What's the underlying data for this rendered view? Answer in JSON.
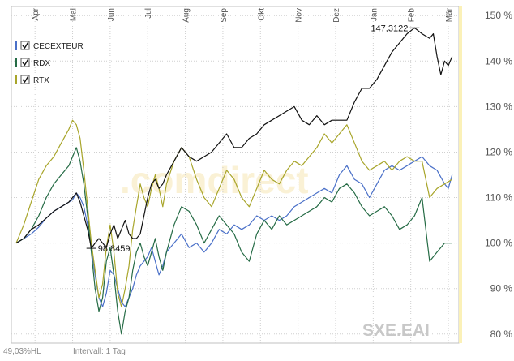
{
  "chart_data": {
    "type": "line",
    "x_labels": [
      "Apr",
      "Mai",
      "Jun",
      "Jul",
      "Aug",
      "Sep",
      "Okt",
      "Nov",
      "Dez",
      "Jan",
      "Feb",
      "Mär"
    ],
    "y_tick_labels": [
      "150 %",
      "140 %",
      "130 %",
      "120 %",
      "110 %",
      "100 %",
      "90 %",
      "80 %"
    ],
    "y_ticks": [
      150,
      140,
      130,
      120,
      110,
      100,
      90,
      80
    ],
    "ylim": [
      78,
      152
    ],
    "x_range": [
      0,
      11.65
    ],
    "grid": true,
    "legend": {
      "placement": "top-left"
    },
    "series": [
      {
        "name": "CECEXTEUR",
        "color": "#4a70c8",
        "values": [
          [
            0,
            100
          ],
          [
            0.2,
            101
          ],
          [
            0.4,
            102
          ],
          [
            0.6,
            103.5
          ],
          [
            0.8,
            105.5
          ],
          [
            1.0,
            107
          ],
          [
            1.2,
            108
          ],
          [
            1.4,
            109
          ],
          [
            1.5,
            109.5
          ],
          [
            1.6,
            111
          ],
          [
            1.7,
            110
          ],
          [
            1.8,
            108
          ],
          [
            1.9,
            104
          ],
          [
            2.0,
            99
          ],
          [
            2.1,
            93
          ],
          [
            2.2,
            88
          ],
          [
            2.3,
            86
          ],
          [
            2.4,
            89
          ],
          [
            2.5,
            94
          ],
          [
            2.6,
            93
          ],
          [
            2.7,
            90
          ],
          [
            2.8,
            87
          ],
          [
            2.9,
            86
          ],
          [
            3.0,
            88
          ],
          [
            3.1,
            90
          ],
          [
            3.2,
            93
          ],
          [
            3.3,
            95
          ],
          [
            3.4,
            96
          ],
          [
            3.5,
            97
          ],
          [
            3.6,
            99
          ],
          [
            3.7,
            96
          ],
          [
            3.8,
            93
          ],
          [
            3.9,
            95
          ],
          [
            4.0,
            98
          ],
          [
            4.2,
            100
          ],
          [
            4.4,
            102
          ],
          [
            4.6,
            99
          ],
          [
            4.8,
            100
          ],
          [
            5.0,
            98
          ],
          [
            5.2,
            100
          ],
          [
            5.4,
            103
          ],
          [
            5.6,
            102
          ],
          [
            5.8,
            104
          ],
          [
            6.0,
            103
          ],
          [
            6.2,
            104
          ],
          [
            6.4,
            106
          ],
          [
            6.6,
            105
          ],
          [
            6.8,
            106
          ],
          [
            7.0,
            105
          ],
          [
            7.2,
            106
          ],
          [
            7.4,
            108
          ],
          [
            7.6,
            109
          ],
          [
            7.8,
            110
          ],
          [
            8.0,
            111
          ],
          [
            8.2,
            112
          ],
          [
            8.4,
            111
          ],
          [
            8.6,
            115
          ],
          [
            8.8,
            117
          ],
          [
            9.0,
            114
          ],
          [
            9.2,
            113
          ],
          [
            9.4,
            110
          ],
          [
            9.6,
            113
          ],
          [
            9.8,
            116
          ],
          [
            10.0,
            117
          ],
          [
            10.2,
            116
          ],
          [
            10.4,
            117
          ],
          [
            10.6,
            118
          ],
          [
            10.8,
            119
          ],
          [
            11.0,
            117
          ],
          [
            11.2,
            116
          ],
          [
            11.4,
            113
          ],
          [
            11.5,
            112
          ],
          [
            11.6,
            115
          ]
        ]
      },
      {
        "name": "RDX",
        "color": "#256b45",
        "values": [
          [
            0,
            100
          ],
          [
            0.2,
            101
          ],
          [
            0.4,
            103
          ],
          [
            0.6,
            106
          ],
          [
            0.8,
            110
          ],
          [
            1.0,
            113
          ],
          [
            1.2,
            115
          ],
          [
            1.4,
            117
          ],
          [
            1.5,
            119
          ],
          [
            1.6,
            121
          ],
          [
            1.7,
            118
          ],
          [
            1.8,
            113
          ],
          [
            1.9,
            106
          ],
          [
            2.0,
            98
          ],
          [
            2.1,
            90
          ],
          [
            2.2,
            85
          ],
          [
            2.3,
            88
          ],
          [
            2.4,
            96
          ],
          [
            2.5,
            99
          ],
          [
            2.6,
            93
          ],
          [
            2.7,
            85
          ],
          [
            2.8,
            80
          ],
          [
            2.9,
            85
          ],
          [
            3.0,
            88
          ],
          [
            3.1,
            94
          ],
          [
            3.2,
            98
          ],
          [
            3.3,
            100
          ],
          [
            3.4,
            97
          ],
          [
            3.5,
            95
          ],
          [
            3.6,
            98
          ],
          [
            3.7,
            101
          ],
          [
            3.8,
            97
          ],
          [
            3.9,
            94
          ],
          [
            4.0,
            98
          ],
          [
            4.2,
            104
          ],
          [
            4.4,
            108
          ],
          [
            4.6,
            107
          ],
          [
            4.8,
            104
          ],
          [
            5.0,
            100
          ],
          [
            5.2,
            103
          ],
          [
            5.4,
            106
          ],
          [
            5.6,
            104
          ],
          [
            5.8,
            102
          ],
          [
            6.0,
            98
          ],
          [
            6.2,
            96
          ],
          [
            6.4,
            102
          ],
          [
            6.6,
            105
          ],
          [
            6.8,
            103
          ],
          [
            7.0,
            106
          ],
          [
            7.2,
            104
          ],
          [
            7.4,
            105
          ],
          [
            7.6,
            106
          ],
          [
            7.8,
            107
          ],
          [
            8.0,
            108
          ],
          [
            8.2,
            110
          ],
          [
            8.4,
            109
          ],
          [
            8.6,
            112
          ],
          [
            8.8,
            113
          ],
          [
            9.0,
            111
          ],
          [
            9.2,
            108
          ],
          [
            9.4,
            106
          ],
          [
            9.6,
            107
          ],
          [
            9.8,
            108
          ],
          [
            10.0,
            106
          ],
          [
            10.2,
            103
          ],
          [
            10.4,
            104
          ],
          [
            10.6,
            106
          ],
          [
            10.8,
            110
          ],
          [
            11.0,
            96
          ],
          [
            11.2,
            98
          ],
          [
            11.4,
            100
          ],
          [
            11.6,
            100
          ]
        ]
      },
      {
        "name": "RTX",
        "color": "#a8a52a",
        "values": [
          [
            0,
            100
          ],
          [
            0.2,
            104
          ],
          [
            0.4,
            109
          ],
          [
            0.6,
            114
          ],
          [
            0.8,
            117
          ],
          [
            1.0,
            119
          ],
          [
            1.2,
            122
          ],
          [
            1.4,
            125
          ],
          [
            1.5,
            127
          ],
          [
            1.6,
            126
          ],
          [
            1.7,
            123
          ],
          [
            1.8,
            116
          ],
          [
            1.9,
            108
          ],
          [
            2.0,
            100
          ],
          [
            2.1,
            94
          ],
          [
            2.2,
            88
          ],
          [
            2.3,
            91
          ],
          [
            2.4,
            99
          ],
          [
            2.5,
            104
          ],
          [
            2.6,
            98
          ],
          [
            2.7,
            89
          ],
          [
            2.8,
            86
          ],
          [
            2.9,
            90
          ],
          [
            3.0,
            95
          ],
          [
            3.1,
            103
          ],
          [
            3.2,
            108
          ],
          [
            3.3,
            113
          ],
          [
            3.4,
            110
          ],
          [
            3.5,
            108
          ],
          [
            3.6,
            112
          ],
          [
            3.7,
            115
          ],
          [
            3.8,
            112
          ],
          [
            3.9,
            108
          ],
          [
            4.0,
            113
          ],
          [
            4.2,
            118
          ],
          [
            4.4,
            121
          ],
          [
            4.6,
            119
          ],
          [
            4.8,
            114
          ],
          [
            5.0,
            110
          ],
          [
            5.2,
            108
          ],
          [
            5.4,
            112
          ],
          [
            5.6,
            116
          ],
          [
            5.8,
            114
          ],
          [
            6.0,
            110
          ],
          [
            6.2,
            108
          ],
          [
            6.4,
            112
          ],
          [
            6.6,
            116
          ],
          [
            6.8,
            114
          ],
          [
            7.0,
            113
          ],
          [
            7.2,
            116
          ],
          [
            7.4,
            118
          ],
          [
            7.6,
            117
          ],
          [
            7.8,
            119
          ],
          [
            8.0,
            121
          ],
          [
            8.2,
            124
          ],
          [
            8.4,
            122
          ],
          [
            8.6,
            124
          ],
          [
            8.8,
            126
          ],
          [
            9.0,
            122
          ],
          [
            9.2,
            118
          ],
          [
            9.4,
            116
          ],
          [
            9.6,
            117
          ],
          [
            9.8,
            118
          ],
          [
            10.0,
            116
          ],
          [
            10.2,
            118
          ],
          [
            10.4,
            119
          ],
          [
            10.6,
            118
          ],
          [
            10.8,
            118
          ],
          [
            11.0,
            110
          ],
          [
            11.2,
            112
          ],
          [
            11.4,
            113
          ],
          [
            11.6,
            114
          ]
        ]
      },
      {
        "name": "",
        "color": "#111111",
        "values": [
          [
            0,
            100
          ],
          [
            0.2,
            101
          ],
          [
            0.4,
            103
          ],
          [
            0.6,
            104
          ],
          [
            0.8,
            105.5
          ],
          [
            1.0,
            107
          ],
          [
            1.2,
            108
          ],
          [
            1.4,
            109
          ],
          [
            1.5,
            110
          ],
          [
            1.6,
            111
          ],
          [
            1.7,
            109
          ],
          [
            1.8,
            106
          ],
          [
            1.9,
            103
          ],
          [
            2.0,
            98.85
          ],
          [
            2.1,
            100
          ],
          [
            2.2,
            101
          ],
          [
            2.3,
            100
          ],
          [
            2.4,
            99
          ],
          [
            2.5,
            102
          ],
          [
            2.6,
            104
          ],
          [
            2.7,
            101
          ],
          [
            2.8,
            103
          ],
          [
            2.9,
            105
          ],
          [
            3.0,
            102
          ],
          [
            3.1,
            101
          ],
          [
            3.2,
            101
          ],
          [
            3.3,
            102
          ],
          [
            3.4,
            106
          ],
          [
            3.5,
            110
          ],
          [
            3.6,
            113
          ],
          [
            3.7,
            114
          ],
          [
            3.8,
            112
          ],
          [
            3.9,
            113
          ],
          [
            4.0,
            115
          ],
          [
            4.2,
            118
          ],
          [
            4.4,
            121
          ],
          [
            4.6,
            119
          ],
          [
            4.8,
            118
          ],
          [
            5.0,
            119
          ],
          [
            5.2,
            120
          ],
          [
            5.4,
            122
          ],
          [
            5.6,
            124
          ],
          [
            5.8,
            121
          ],
          [
            6.0,
            121
          ],
          [
            6.2,
            123
          ],
          [
            6.4,
            124
          ],
          [
            6.6,
            126
          ],
          [
            6.8,
            127
          ],
          [
            7.0,
            128
          ],
          [
            7.2,
            129
          ],
          [
            7.4,
            130
          ],
          [
            7.6,
            127
          ],
          [
            7.8,
            126
          ],
          [
            8.0,
            128
          ],
          [
            8.2,
            126
          ],
          [
            8.4,
            127
          ],
          [
            8.6,
            127
          ],
          [
            8.8,
            127
          ],
          [
            9.0,
            131
          ],
          [
            9.2,
            134
          ],
          [
            9.4,
            134
          ],
          [
            9.6,
            136
          ],
          [
            9.8,
            139
          ],
          [
            10.0,
            142
          ],
          [
            10.2,
            144
          ],
          [
            10.4,
            146
          ],
          [
            10.6,
            147.31
          ],
          [
            10.8,
            146
          ],
          [
            11.0,
            145
          ],
          [
            11.1,
            146
          ],
          [
            11.2,
            141
          ],
          [
            11.3,
            137
          ],
          [
            11.4,
            140
          ],
          [
            11.5,
            139
          ],
          [
            11.6,
            141
          ]
        ]
      }
    ],
    "annotations": [
      {
        "text": "98,8459",
        "x": 2.0,
        "y": 98.85,
        "align": "left"
      },
      {
        "text": "147,3122",
        "x": 10.6,
        "y": 147.31,
        "align": "right"
      }
    ]
  },
  "watermark": ".comdirect",
  "badge": "SXE.EAI",
  "footer": {
    "left": "49,03%HL",
    "interval": "Intervall: 1 Tag"
  }
}
